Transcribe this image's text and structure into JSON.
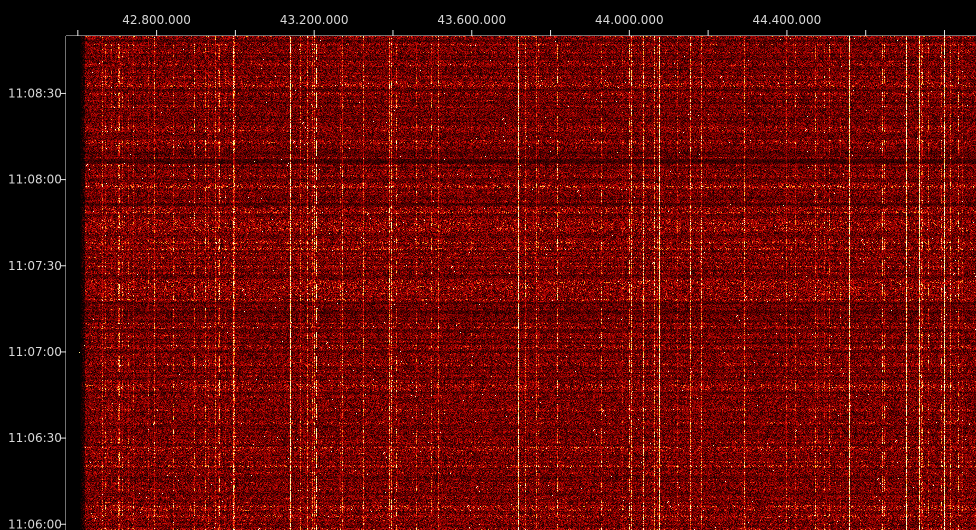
{
  "chart_data": {
    "type": "heatmap",
    "title": "",
    "xlabel": "",
    "ylabel": "",
    "x_tick_labels": [
      "42.800.000",
      "43.200.000",
      "43.600.000",
      "44.000.000",
      "44.400.000"
    ],
    "x_tick_values": [
      42800000,
      43200000,
      43600000,
      44000000,
      44400000
    ],
    "x_range": [
      42570000,
      44880000
    ],
    "y_tick_labels": [
      "11:08:30",
      "11:08:00",
      "11:07:30",
      "11:07:00",
      "11:06:30",
      "11:06:00"
    ],
    "y_tick_seconds": [
      39810,
      39780,
      39750,
      39720,
      39690,
      39660
    ],
    "y_range_seconds": [
      39830,
      39658
    ],
    "signal_start_frequency": 42800000,
    "colormap": [
      "#000000",
      "#3a0000",
      "#8a0606",
      "#d41010",
      "#ff3a1a",
      "#ffe07a",
      "#ffffc0"
    ],
    "grid": false,
    "legend": "none"
  }
}
